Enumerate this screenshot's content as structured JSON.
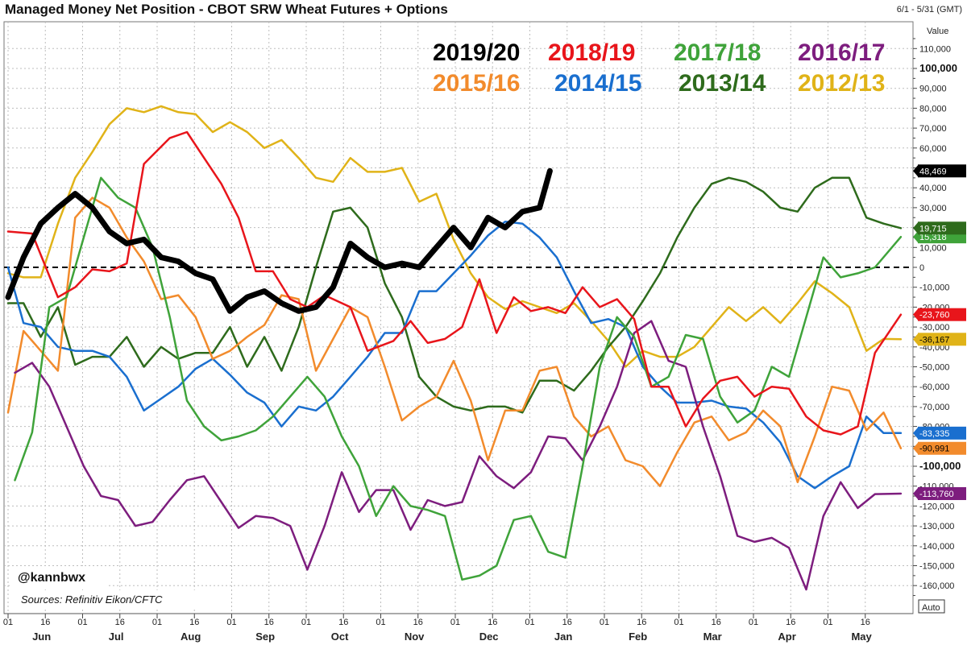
{
  "header": {
    "title": "Managed Money Net Position - CBOT SRW Wheat Futures + Options",
    "date_range": "6/1 - 5/31 (GMT)",
    "value_label": "Value",
    "auto_label": "Auto"
  },
  "footer": {
    "handle": "@kannbwx",
    "sources": "Sources: Refinitiv Eikon/CFTC"
  },
  "chart_data": {
    "type": "line",
    "title": "Managed Money Net Position - CBOT SRW Wheat Futures + Options",
    "ylabel": "Value",
    "ylim": [
      -170000,
      120000
    ],
    "yticks": [
      110000,
      100000,
      90000,
      80000,
      70000,
      60000,
      50000,
      40000,
      30000,
      20000,
      10000,
      0,
      -10000,
      -20000,
      -30000,
      -40000,
      -50000,
      -60000,
      -70000,
      -80000,
      -90000,
      -100000,
      -110000,
      -120000,
      -130000,
      -140000,
      -150000,
      -160000
    ],
    "ytick_labels": [
      "110,000",
      "100,000",
      "90,000",
      "80,000",
      "70,000",
      "60,000",
      "50,000",
      "40,000",
      "30,000",
      "20,000",
      "10,000",
      "0",
      "-10,000",
      "-20,000",
      "-30,000",
      "-40,000",
      "-50,000",
      "-60,000",
      "-70,000",
      "-80,000",
      "-90,000",
      "-100,000",
      "-110,000",
      "-120,000",
      "-130,000",
      "-140,000",
      "-150,000",
      "-160,000"
    ],
    "ybold": [
      100000,
      -100000
    ],
    "months": [
      "Jun",
      "Jul",
      "Aug",
      "Sep",
      "Oct",
      "Nov",
      "Dec",
      "Jan",
      "Feb",
      "Mar",
      "Apr",
      "May"
    ],
    "xtick_days": [
      "01",
      "16"
    ],
    "x_unit": "weeks since Jun 1",
    "x_max": 52,
    "series": [
      {
        "name": "2019/20",
        "color": "#000000",
        "width": 7,
        "badge": "48,469",
        "badge_value": 48469,
        "badge_text": "#ffffff",
        "x": [
          0,
          0.9,
          1.9,
          2.9,
          3.9,
          4.9,
          5.9,
          6.9,
          7.9,
          8.9,
          9.9,
          10.9,
          11.9,
          12.9,
          13.9,
          14.9,
          15.9,
          16.9,
          17.9,
          18.9,
          19.9,
          20.9,
          21.9,
          22.9,
          23.9,
          24.9,
          25.9,
          26.9,
          27.9,
          28.9,
          29.9,
          30.9,
          31.5
        ],
        "y": [
          -15000,
          5000,
          22000,
          30000,
          37000,
          30000,
          18000,
          12000,
          14000,
          5000,
          3000,
          -3000,
          -6000,
          -22000,
          -15000,
          -12000,
          -18000,
          -22000,
          -20000,
          -10000,
          12000,
          5000,
          0,
          2000,
          0,
          10000,
          20000,
          10000,
          25000,
          20000,
          28000,
          30000,
          48469
        ]
      },
      {
        "name": "2018/19",
        "color": "#e8151b",
        "width": 2.5,
        "badge": "-23,760",
        "badge_value": -23760,
        "badge_text": "#ffffff",
        "x": [
          0,
          1.4,
          2.9,
          3.9,
          4.9,
          5.9,
          6.9,
          7.9,
          9.4,
          10.4,
          11.4,
          12.4,
          13.4,
          14.4,
          15.4,
          16.4,
          17.4,
          18.4,
          19.9,
          20.9,
          22.4,
          23.4,
          24.4,
          25.4,
          26.4,
          27.4,
          28.4,
          29.4,
          30.4,
          31.4,
          32.4,
          33.4,
          34.4,
          35.4,
          36.4,
          37.4,
          38.4,
          39.4,
          40.4,
          41.4,
          42.4,
          43.4,
          44.4,
          45.4,
          46.4,
          47.4,
          48.4,
          49.4,
          50.4,
          51.9
        ],
        "y": [
          18000,
          17000,
          -15000,
          -10000,
          -1000,
          -2000,
          2000,
          52000,
          65000,
          68000,
          55000,
          42000,
          25000,
          -2000,
          -2000,
          -16000,
          -20000,
          -14000,
          -20000,
          -42000,
          -37000,
          -27000,
          -38000,
          -36000,
          -30000,
          -6000,
          -33000,
          -15000,
          -22000,
          -20000,
          -23000,
          -10000,
          -20000,
          -16000,
          -26000,
          -60000,
          -60000,
          -80000,
          -66000,
          -57000,
          -55000,
          -65000,
          -60000,
          -61000,
          -75000,
          -82000,
          -84000,
          -80000,
          -43000,
          -23760
        ]
      },
      {
        "name": "2017/18",
        "color": "#3fa33a",
        "width": 2.5,
        "badge": "15,318",
        "badge_value": 15318,
        "badge_text": "#ffffff",
        "x": [
          0.4,
          1.4,
          2.4,
          3.4,
          4.4,
          5.4,
          6.4,
          7.4,
          8.4,
          9.4,
          10.4,
          11.4,
          12.4,
          13.4,
          14.4,
          15.4,
          16.4,
          17.4,
          18.4,
          19.4,
          20.4,
          21.4,
          22.4,
          23.4,
          24.4,
          25.4,
          26.4,
          27.4,
          28.4,
          29.4,
          30.4,
          31.4,
          32.4,
          33.4,
          34.4,
          35.4,
          36.4,
          37.4,
          38.4,
          39.4,
          40.4,
          41.4,
          42.4,
          43.4,
          44.4,
          45.4,
          46.4,
          47.4,
          48.4,
          49.4,
          50.4,
          51.9
        ],
        "y": [
          -107000,
          -83000,
          -20000,
          -15000,
          15000,
          45000,
          35000,
          30000,
          10000,
          -25000,
          -67000,
          -80000,
          -87000,
          -85000,
          -82000,
          -75000,
          -65000,
          -55000,
          -65000,
          -85000,
          -100000,
          -125000,
          -110000,
          -120000,
          -122000,
          -125000,
          -157000,
          -155000,
          -150000,
          -127000,
          -125000,
          -143000,
          -146000,
          -100000,
          -50000,
          -25000,
          -35000,
          -60000,
          -55000,
          -34000,
          -36000,
          -65000,
          -78000,
          -72000,
          -50000,
          -55000,
          -25000,
          5000,
          -5000,
          -3000,
          0,
          15318
        ]
      },
      {
        "name": "2016/17",
        "color": "#7d1d7e",
        "width": 2.5,
        "badge": "-113,760",
        "badge_value": -113760,
        "badge_text": "#ffffff",
        "x": [
          0.4,
          1.4,
          2.4,
          3.4,
          4.4,
          5.4,
          6.4,
          7.4,
          8.4,
          9.4,
          10.4,
          11.4,
          12.4,
          13.4,
          14.4,
          15.4,
          16.4,
          17.4,
          18.4,
          19.4,
          20.4,
          21.4,
          22.4,
          23.4,
          24.4,
          25.4,
          26.4,
          27.4,
          28.4,
          29.4,
          30.4,
          31.4,
          32.4,
          33.4,
          34.4,
          35.4,
          36.4,
          37.4,
          38.4,
          39.4,
          40.4,
          41.4,
          42.4,
          43.4,
          44.4,
          45.4,
          46.4,
          47.4,
          48.4,
          49.4,
          50.4,
          51.9
        ],
        "y": [
          -53000,
          -48000,
          -60000,
          -80000,
          -100000,
          -115000,
          -117000,
          -130000,
          -128000,
          -117000,
          -107000,
          -105000,
          -118000,
          -131000,
          -125000,
          -126000,
          -130000,
          -152000,
          -130000,
          -103000,
          -123000,
          -112000,
          -112000,
          -132000,
          -117000,
          -120000,
          -118000,
          -95000,
          -105000,
          -111000,
          -103000,
          -85000,
          -86000,
          -97000,
          -80000,
          -60000,
          -33000,
          -27000,
          -47000,
          -50000,
          -80000,
          -105000,
          -135000,
          -138000,
          -136000,
          -141000,
          -162000,
          -125000,
          -108000,
          -121000,
          -114000,
          -113760
        ]
      },
      {
        "name": "2015/16",
        "color": "#f28b2c",
        "width": 2.5,
        "badge": "-90,991",
        "badge_value": -90991,
        "badge_text": "#000000",
        "x": [
          0,
          0.9,
          1.9,
          2.9,
          3.9,
          4.9,
          5.9,
          6.9,
          7.9,
          8.9,
          9.9,
          10.9,
          11.9,
          12.9,
          13.9,
          14.9,
          15.9,
          16.9,
          17.9,
          18.9,
          19.9,
          20.9,
          21.9,
          22.9,
          23.9,
          24.9,
          25.9,
          26.9,
          27.9,
          28.9,
          29.9,
          30.9,
          31.9,
          32.9,
          33.9,
          34.9,
          35.9,
          36.9,
          37.9,
          38.9,
          39.9,
          40.9,
          41.9,
          42.9,
          43.9,
          44.9,
          45.9,
          46.9,
          47.9,
          48.9,
          49.9,
          50.9,
          51.9
        ],
        "y": [
          -73000,
          -32000,
          -42000,
          -52000,
          25000,
          35000,
          30000,
          15000,
          3000,
          -16000,
          -14000,
          -25000,
          -46000,
          -42000,
          -35000,
          -29000,
          -14000,
          -16000,
          -52000,
          -36000,
          -20000,
          -25000,
          -50000,
          -77000,
          -70000,
          -65000,
          -47000,
          -67000,
          -97000,
          -72000,
          -72000,
          -52000,
          -50000,
          -75000,
          -85000,
          -80000,
          -97000,
          -100000,
          -110000,
          -93000,
          -78000,
          -75000,
          -87000,
          -83000,
          -72000,
          -80000,
          -108000,
          -85000,
          -60000,
          -62000,
          -82000,
          -73000,
          -90991
        ]
      },
      {
        "name": "2014/15",
        "color": "#1a6fcf",
        "width": 2.5,
        "badge": "-83,335",
        "badge_value": -83335,
        "badge_text": "#ffffff",
        "x": [
          0,
          0.9,
          1.9,
          2.9,
          3.9,
          4.9,
          5.9,
          6.9,
          7.9,
          8.9,
          9.9,
          10.9,
          11.9,
          12.9,
          13.9,
          14.9,
          15.9,
          16.9,
          17.9,
          18.9,
          19.9,
          20.9,
          21.9,
          22.9,
          23.9,
          24.9,
          25.9,
          26.9,
          27.9,
          28.9,
          29.9,
          30.9,
          31.9,
          32.9,
          33.9,
          34.9,
          35.9,
          36.9,
          37.9,
          38.9,
          39.9,
          40.9,
          41.9,
          42.9,
          43.9,
          44.9,
          45.9,
          46.9,
          47.9,
          48.9,
          49.9,
          50.9,
          51.9
        ],
        "y": [
          0,
          -28000,
          -30000,
          -40000,
          -42000,
          -42000,
          -45000,
          -55000,
          -72000,
          -66000,
          -60000,
          -51000,
          -46000,
          -54000,
          -63000,
          -68000,
          -80000,
          -70000,
          -72000,
          -65000,
          -55000,
          -45000,
          -33000,
          -33000,
          -12000,
          -12000,
          -3000,
          6000,
          16000,
          23000,
          22000,
          15000,
          5000,
          -12000,
          -28000,
          -26000,
          -30000,
          -50000,
          -60000,
          -68000,
          -68000,
          -67000,
          -70000,
          -71000,
          -78000,
          -88000,
          -105000,
          -111000,
          -105000,
          -100000,
          -75000,
          -83335,
          -83335
        ]
      },
      {
        "name": "2013/14",
        "color": "#2e6b1c",
        "width": 2.5,
        "badge": "19,715",
        "badge_value": 19715,
        "badge_text": "#ffffff",
        "x": [
          0,
          0.9,
          1.9,
          2.9,
          3.9,
          4.9,
          5.9,
          6.9,
          7.9,
          8.9,
          9.9,
          10.9,
          11.9,
          12.9,
          13.9,
          14.9,
          15.9,
          16.9,
          17.9,
          18.9,
          19.9,
          20.9,
          21.9,
          22.9,
          23.9,
          24.9,
          25.9,
          26.9,
          27.9,
          28.9,
          29.9,
          30.9,
          31.9,
          32.9,
          33.9,
          34.9,
          35.9,
          36.9,
          37.9,
          38.9,
          39.9,
          40.9,
          41.9,
          42.9,
          43.9,
          44.9,
          45.9,
          46.9,
          47.9,
          48.9,
          49.9,
          50.9,
          51.9
        ],
        "y": [
          -18000,
          -18000,
          -35000,
          -20000,
          -49000,
          -45000,
          -45000,
          -35000,
          -50000,
          -40000,
          -46000,
          -43000,
          -43000,
          -30000,
          -50000,
          -35000,
          -52000,
          -30000,
          0,
          28000,
          30000,
          20000,
          -8000,
          -25000,
          -55000,
          -65000,
          -70000,
          -72000,
          -70000,
          -70000,
          -73000,
          -57000,
          -57000,
          -62000,
          -52000,
          -40000,
          -30000,
          -17000,
          -3000,
          15000,
          30000,
          42000,
          45000,
          43000,
          38000,
          30000,
          28000,
          40000,
          45000,
          45000,
          25000,
          22000,
          19715
        ]
      },
      {
        "name": "2012/13",
        "color": "#e0b318",
        "width": 2.5,
        "badge": "-36,167",
        "badge_value": -36167,
        "badge_text": "#000000",
        "x": [
          0,
          0.9,
          1.9,
          2.9,
          3.9,
          4.9,
          5.9,
          6.9,
          7.9,
          8.9,
          9.9,
          10.9,
          11.9,
          12.9,
          13.9,
          14.9,
          15.9,
          16.9,
          17.9,
          18.9,
          19.9,
          20.9,
          21.9,
          22.9,
          23.9,
          24.9,
          25.9,
          26.9,
          27.9,
          28.9,
          29.9,
          30.9,
          31.9,
          32.9,
          33.9,
          34.9,
          35.9,
          36.9,
          37.9,
          38.9,
          39.9,
          40.9,
          41.9,
          42.9,
          43.9,
          44.9,
          45.9,
          46.9,
          47.9,
          48.9,
          49.9,
          50.9,
          51.9
        ],
        "y": [
          -3000,
          -5000,
          -5000,
          22000,
          45000,
          58000,
          72000,
          80000,
          78000,
          81000,
          78000,
          77000,
          68000,
          73000,
          68000,
          60000,
          64000,
          55000,
          45000,
          43000,
          55000,
          48000,
          48000,
          50000,
          33000,
          37000,
          14000,
          -3000,
          -15000,
          -21000,
          -17000,
          -20000,
          -23000,
          -18000,
          -27000,
          -37000,
          -50000,
          -42000,
          -45000,
          -45000,
          -40000,
          -30000,
          -20000,
          -27000,
          -20000,
          -28000,
          -18000,
          -7000,
          -13000,
          -20000,
          -42000,
          -36000,
          -36167
        ]
      }
    ]
  }
}
